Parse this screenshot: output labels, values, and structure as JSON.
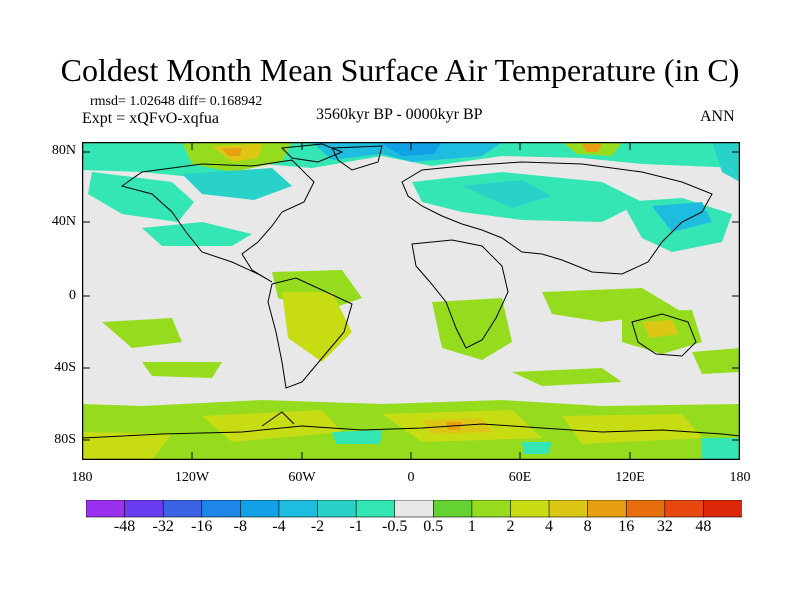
{
  "header": {
    "title": "Coldest Month Mean Surface Air Temperature (in C)",
    "stats": "rmsd= 1.02648 diff= 0.168942",
    "experiment": "Expt = xQFvO-xqfua",
    "period": "3560kyr BP - 0000kyr BP",
    "season": "ANN"
  },
  "axes": {
    "lat_labels": [
      "80N",
      "40N",
      "0",
      "40S",
      "80S"
    ],
    "lon_labels": [
      "180",
      "120W",
      "60W",
      "0",
      "60E",
      "120E",
      "180"
    ]
  },
  "colorbar": {
    "labels": [
      "-48",
      "-32",
      "-16",
      "-8",
      "-4",
      "-2",
      "-1",
      "-0.5",
      "0.5",
      "1",
      "2",
      "4",
      "8",
      "16",
      "32",
      "48"
    ],
    "colors": [
      "#9b30f0",
      "#6a3cf0",
      "#3c62e6",
      "#1e86e6",
      "#12a0e6",
      "#1ebde0",
      "#28d2c8",
      "#34e6b4",
      "#e8e8e8",
      "#64d232",
      "#96dc1e",
      "#c8dc14",
      "#dcc814",
      "#e6a010",
      "#e66e0c",
      "#e84810",
      "#dc2808"
    ]
  }
}
